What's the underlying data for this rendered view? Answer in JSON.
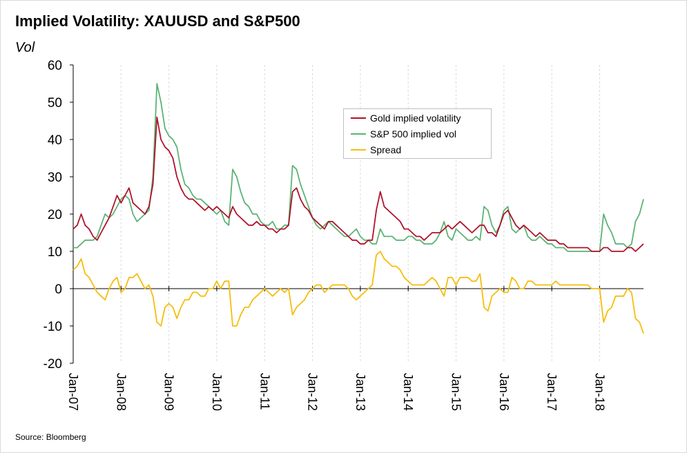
{
  "title": "Implied Volatility: XAUUSD and S&P500",
  "unit_label": "Vol",
  "source": "Source: Bloomberg",
  "colors": {
    "gold": "#b0122a",
    "spx": "#5bb374",
    "spread": "#f5bd0c",
    "grid": "#d9d9d9",
    "axis": "#000000"
  },
  "chart_data": {
    "type": "line",
    "title": "Implied Volatility: XAUUSD and S&P500",
    "ylabel": "Vol",
    "xlabel": "",
    "ylim": [
      -20,
      60
    ],
    "yticks": [
      -20,
      -10,
      0,
      10,
      20,
      30,
      40,
      50,
      60
    ],
    "xlim": [
      "2007-01",
      "2018-12"
    ],
    "xtick_labels": [
      "Jan-07",
      "Jan-08",
      "Jan-09",
      "Jan-10",
      "Jan-11",
      "Jan-12",
      "Jan-13",
      "Jan-14",
      "Jan-15",
      "Jan-16",
      "Jan-17",
      "Jan-18"
    ],
    "legend_position": "top-center",
    "grid": "vertical dashed",
    "x": [
      "2007-01",
      "2007-02",
      "2007-03",
      "2007-04",
      "2007-05",
      "2007-06",
      "2007-07",
      "2007-08",
      "2007-09",
      "2007-10",
      "2007-11",
      "2007-12",
      "2008-01",
      "2008-02",
      "2008-03",
      "2008-04",
      "2008-05",
      "2008-06",
      "2008-07",
      "2008-08",
      "2008-09",
      "2008-10",
      "2008-11",
      "2008-12",
      "2009-01",
      "2009-02",
      "2009-03",
      "2009-04",
      "2009-05",
      "2009-06",
      "2009-07",
      "2009-08",
      "2009-09",
      "2009-10",
      "2009-11",
      "2009-12",
      "2010-01",
      "2010-02",
      "2010-03",
      "2010-04",
      "2010-05",
      "2010-06",
      "2010-07",
      "2010-08",
      "2010-09",
      "2010-10",
      "2010-11",
      "2010-12",
      "2011-01",
      "2011-02",
      "2011-03",
      "2011-04",
      "2011-05",
      "2011-06",
      "2011-07",
      "2011-08",
      "2011-09",
      "2011-10",
      "2011-11",
      "2011-12",
      "2012-01",
      "2012-02",
      "2012-03",
      "2012-04",
      "2012-05",
      "2012-06",
      "2012-07",
      "2012-08",
      "2012-09",
      "2012-10",
      "2012-11",
      "2012-12",
      "2013-01",
      "2013-02",
      "2013-03",
      "2013-04",
      "2013-05",
      "2013-06",
      "2013-07",
      "2013-08",
      "2013-09",
      "2013-10",
      "2013-11",
      "2013-12",
      "2014-01",
      "2014-02",
      "2014-03",
      "2014-04",
      "2014-05",
      "2014-06",
      "2014-07",
      "2014-08",
      "2014-09",
      "2014-10",
      "2014-11",
      "2014-12",
      "2015-01",
      "2015-02",
      "2015-03",
      "2015-04",
      "2015-05",
      "2015-06",
      "2015-07",
      "2015-08",
      "2015-09",
      "2015-10",
      "2015-11",
      "2015-12",
      "2016-01",
      "2016-02",
      "2016-03",
      "2016-04",
      "2016-05",
      "2016-06",
      "2016-07",
      "2016-08",
      "2016-09",
      "2016-10",
      "2016-11",
      "2016-12",
      "2017-01",
      "2017-02",
      "2017-03",
      "2017-04",
      "2017-05",
      "2017-06",
      "2017-07",
      "2017-08",
      "2017-09",
      "2017-10",
      "2017-11",
      "2017-12",
      "2018-01",
      "2018-02",
      "2018-03",
      "2018-04",
      "2018-05",
      "2018-06",
      "2018-07",
      "2018-08",
      "2018-09",
      "2018-10",
      "2018-11",
      "2018-12"
    ],
    "series": [
      {
        "name": "Gold implied volatility",
        "color": "#b0122a",
        "values": [
          16,
          17,
          20,
          17,
          16,
          14,
          13,
          15,
          17,
          19,
          22,
          25,
          23,
          25,
          27,
          23,
          22,
          21,
          20,
          22,
          28,
          46,
          40,
          38,
          37,
          35,
          30,
          27,
          25,
          24,
          24,
          23,
          22,
          21,
          22,
          21,
          22,
          21,
          20,
          19,
          22,
          20,
          19,
          18,
          17,
          17,
          18,
          17,
          17,
          16,
          16,
          15,
          16,
          16,
          17,
          26,
          27,
          24,
          22,
          21,
          19,
          18,
          17,
          16,
          18,
          18,
          17,
          16,
          15,
          14,
          13,
          13,
          12,
          12,
          13,
          13,
          21,
          26,
          22,
          21,
          20,
          19,
          18,
          16,
          16,
          15,
          14,
          14,
          13,
          14,
          15,
          15,
          15,
          16,
          17,
          16,
          17,
          18,
          17,
          16,
          15,
          16,
          17,
          17,
          15,
          15,
          14,
          17,
          20,
          21,
          19,
          17,
          16,
          17,
          16,
          15,
          14,
          15,
          14,
          13,
          13,
          13,
          12,
          12,
          11,
          11,
          11,
          11,
          11,
          11,
          10,
          10,
          10,
          11,
          11,
          10,
          10,
          10,
          10,
          11,
          11,
          10,
          11,
          12
        ]
      },
      {
        "name": "S&P 500 implied vol",
        "color": "#5bb374",
        "values": [
          11,
          11,
          12,
          13,
          13,
          13,
          14,
          17,
          20,
          19,
          20,
          22,
          24,
          25,
          24,
          20,
          18,
          19,
          20,
          21,
          30,
          55,
          50,
          43,
          41,
          40,
          38,
          32,
          28,
          27,
          25,
          24,
          24,
          23,
          22,
          21,
          20,
          21,
          18,
          17,
          32,
          30,
          26,
          23,
          22,
          20,
          20,
          18,
          17,
          17,
          18,
          16,
          16,
          17,
          17,
          33,
          32,
          28,
          25,
          22,
          19,
          17,
          16,
          17,
          18,
          17,
          16,
          15,
          14,
          14,
          15,
          16,
          14,
          13,
          13,
          12,
          12,
          16,
          14,
          14,
          14,
          13,
          13,
          13,
          14,
          14,
          13,
          13,
          12,
          12,
          12,
          13,
          15,
          18,
          14,
          13,
          16,
          15,
          14,
          13,
          13,
          14,
          13,
          22,
          21,
          17,
          15,
          17,
          21,
          22,
          16,
          15,
          16,
          17,
          14,
          13,
          13,
          14,
          13,
          12,
          12,
          11,
          11,
          11,
          10,
          10,
          10,
          10,
          10,
          10,
          10,
          10,
          10,
          20,
          17,
          15,
          12,
          12,
          12,
          11,
          12,
          18,
          20,
          24
        ]
      },
      {
        "name": "Spread",
        "color": "#f5bd0c",
        "values": [
          5,
          6,
          8,
          4,
          3,
          1,
          -1,
          -2,
          -3,
          0,
          2,
          3,
          -1,
          0,
          3,
          3,
          4,
          2,
          0,
          1,
          -2,
          -9,
          -10,
          -5,
          -4,
          -5,
          -8,
          -5,
          -3,
          -3,
          -1,
          -1,
          -2,
          -2,
          0,
          0,
          2,
          0,
          2,
          2,
          -10,
          -10,
          -7,
          -5,
          -5,
          -3,
          -2,
          -1,
          0,
          -1,
          -2,
          -1,
          0,
          -1,
          0,
          -7,
          -5,
          -4,
          -3,
          -1,
          0,
          1,
          1,
          -1,
          0,
          1,
          1,
          1,
          1,
          0,
          -2,
          -3,
          -2,
          -1,
          0,
          1,
          9,
          10,
          8,
          7,
          6,
          6,
          5,
          3,
          2,
          1,
          1,
          1,
          1,
          2,
          3,
          2,
          0,
          -2,
          3,
          3,
          1,
          3,
          3,
          3,
          2,
          2,
          4,
          -5,
          -6,
          -2,
          -1,
          0,
          -1,
          -1,
          3,
          2,
          0,
          0,
          2,
          2,
          1,
          1,
          1,
          1,
          1,
          2,
          1,
          1,
          1,
          1,
          1,
          1,
          1,
          1,
          0,
          0,
          0,
          -9,
          -6,
          -5,
          -2,
          -2,
          -2,
          0,
          -1,
          -8,
          -9,
          -12
        ]
      }
    ]
  }
}
